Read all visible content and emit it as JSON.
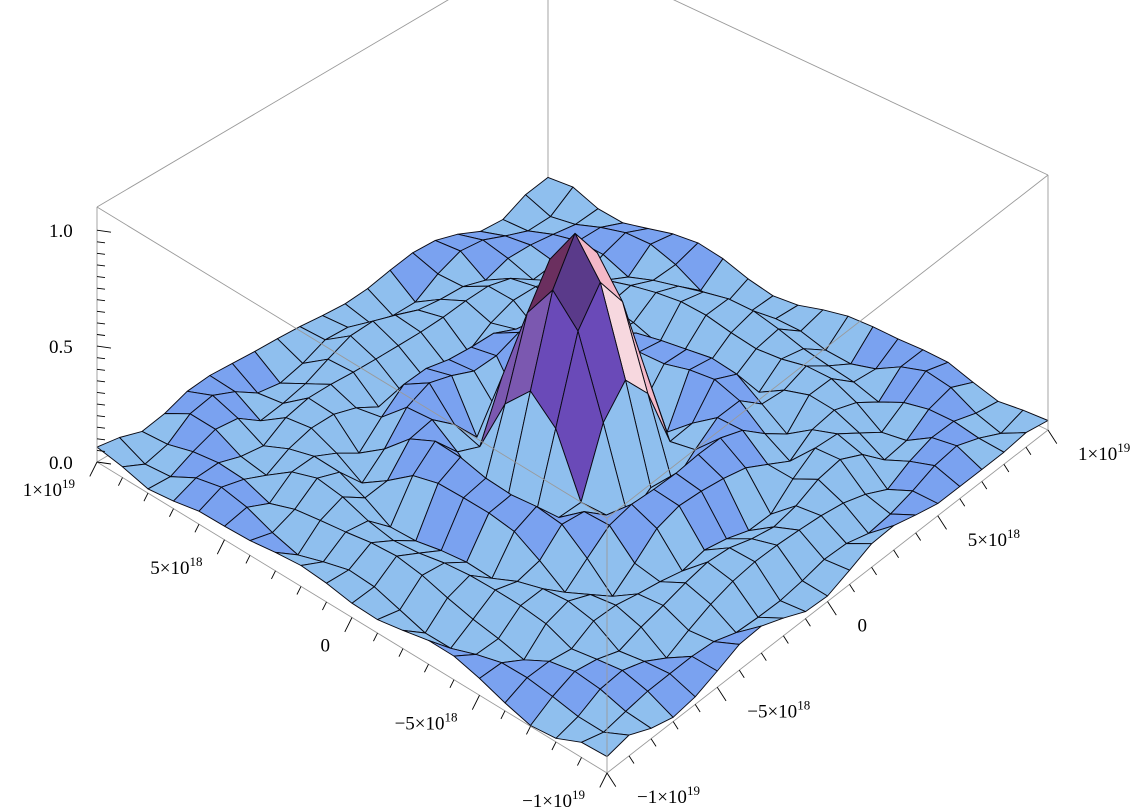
{
  "chart_data": {
    "type": "surface3d",
    "title": "",
    "xlabel": "",
    "ylabel": "",
    "zlabel": "",
    "xlim": [
      -1e+19,
      1e+19
    ],
    "ylim": [
      -1e+19,
      1e+19
    ],
    "zlim": [
      0,
      1.1
    ],
    "grid_resolution": 20,
    "mesh": true,
    "box": true,
    "function": "sinc-like radial peak: z = |sin(k r)/(k r)| with ripple rings",
    "peak": {
      "x": 0,
      "y": 0,
      "z": 1.0
    },
    "surface_color": "#8fbfee",
    "mesh_color": "#0a0a14",
    "box_color": "#9a9a9a",
    "z_ticks": [
      {
        "value": 0.0,
        "label": "0.0"
      },
      {
        "value": 0.5,
        "label": "0.5"
      },
      {
        "value": 1.0,
        "label": "1.0"
      }
    ],
    "left_axis_ticks": [
      {
        "value": 1e+19,
        "mant": "1",
        "exp": "19",
        "neg": false
      },
      {
        "value": 5e+18,
        "mant": "5",
        "exp": "18",
        "neg": false
      },
      {
        "value": 0,
        "mant": "0",
        "exp": "",
        "neg": false
      },
      {
        "value": -5e+18,
        "mant": "5",
        "exp": "18",
        "neg": true
      },
      {
        "value": -1e+19,
        "mant": "1",
        "exp": "19",
        "neg": true
      }
    ],
    "right_axis_ticks": [
      {
        "value": 1e+19,
        "mant": "1",
        "exp": "19",
        "neg": false
      },
      {
        "value": 5e+18,
        "mant": "5",
        "exp": "18",
        "neg": false
      },
      {
        "value": 0,
        "mant": "0",
        "exp": "",
        "neg": false
      },
      {
        "value": -5e+18,
        "mant": "5",
        "exp": "18",
        "neg": true
      },
      {
        "value": -1e+19,
        "mant": "1",
        "exp": "19",
        "neg": true
      }
    ]
  }
}
